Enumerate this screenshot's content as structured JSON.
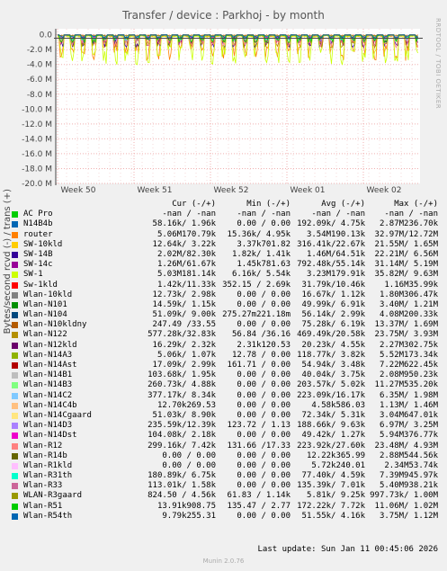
{
  "title": "Transfer / device : Parkhoj - by month",
  "ylabel": "Bytes/second rcvd (-) / trans (+)",
  "watermark": "RRDTOOL / TOBI OETIKER",
  "last_update": "Last update:  Sun Jan 11 00:45:06 2026",
  "footer": "Munin 2.0.76",
  "chart_data": {
    "type": "line",
    "yticks": [
      {
        "v": 0,
        "label": "0.0"
      },
      {
        "v": -2,
        "label": "-2.0 M"
      },
      {
        "v": -4,
        "label": "-4.0 M"
      },
      {
        "v": -6,
        "label": "-6.0 M"
      },
      {
        "v": -8,
        "label": "-8.0 M"
      },
      {
        "v": -10,
        "label": "-10.0 M"
      },
      {
        "v": -12,
        "label": "-12.0 M"
      },
      {
        "v": -14,
        "label": "-14.0 M"
      },
      {
        "v": -16,
        "label": "-16.0 M"
      },
      {
        "v": -18,
        "label": "-18.0 M"
      },
      {
        "v": -20,
        "label": "-20.0 M"
      }
    ],
    "ylim": [
      -20,
      0.8
    ],
    "xticks": [
      "Week 50",
      "Week 51",
      "Week 52",
      "Week 01",
      "Week 02"
    ],
    "grid": true
  },
  "legend_header": {
    "cur": "Cur (-/+)",
    "min": "Min (-/+)",
    "avg": "Avg (-/+)",
    "max": "Max (-/+)"
  },
  "legend": [
    {
      "name": "AC Pro",
      "color": "#00cc00",
      "cur": "-nan / -nan",
      "min": "-nan / -nan",
      "avg": "-nan / -nan",
      "max": "-nan / -nan"
    },
    {
      "name": "N14B4b",
      "color": "#0066b3",
      "cur": "58.16k/ 1.96k",
      "min": "0.00 / 0.00",
      "avg": "192.09k/ 4.75k",
      "max": "2.87M236.70k"
    },
    {
      "name": "router",
      "color": "#ff8000",
      "cur": "5.06M170.79k",
      "min": "15.36k/ 4.95k",
      "avg": "3.54M190.13k",
      "max": "32.97M/12.72M"
    },
    {
      "name": "SW-10kld",
      "color": "#ffcc00",
      "cur": "12.64k/ 3.22k",
      "min": "3.37k701.82",
      "avg": "316.41k/22.67k",
      "max": "21.55M/ 1.65M"
    },
    {
      "name": "SW-14B",
      "color": "#330099",
      "cur": "2.02M/82.30k",
      "min": "1.82k/ 1.41k",
      "avg": "1.46M/64.51k",
      "max": "22.21M/ 6.56M"
    },
    {
      "name": "SW-14c",
      "color": "#990099",
      "cur": "1.26M/61.67k",
      "min": "1.45k781.63",
      "avg": "792.48k/55.14k",
      "max": "31.14M/ 5.19M"
    },
    {
      "name": "SW-1",
      "color": "#ccff00",
      "cur": "5.03M181.14k",
      "min": "6.16k/ 5.54k",
      "avg": "3.23M179.91k",
      "max": "35.82M/ 9.63M"
    },
    {
      "name": "Sw-1kld",
      "color": "#ff0000",
      "cur": "1.42k/11.33k",
      "min": "352.15 / 2.69k",
      "avg": "31.79k/10.46k",
      "max": "1.16M35.99k"
    },
    {
      "name": "Wlan-10kld",
      "color": "#808080",
      "cur": "12.73k/ 2.98k",
      "min": "0.00 / 0.00",
      "avg": "16.67k/ 1.12k",
      "max": "1.80M306.47k"
    },
    {
      "name": "Wlan-N101",
      "color": "#008f00",
      "cur": "14.59k/ 1.15k",
      "min": "0.00 / 0.00",
      "avg": "49.99k/ 6.91k",
      "max": "3.40M/ 1.21M"
    },
    {
      "name": "Wlan-N104",
      "color": "#00487d",
      "cur": "51.09k/ 9.00k",
      "min": "275.27m221.18m",
      "avg": "56.14k/ 2.99k",
      "max": "4.08M200.33k"
    },
    {
      "name": "Wlan-N10kldny",
      "color": "#b35a00",
      "cur": "247.49 /33.55",
      "min": "0.00 / 0.00",
      "avg": "75.28k/ 6.19k",
      "max": "13.37M/ 1.69M"
    },
    {
      "name": "Wlan-N122",
      "color": "#b38f00",
      "cur": "577.28k/32.83k",
      "min": "56.84 /36.16",
      "avg": "469.49k/20.58k",
      "max": "23.75M/ 3.93M"
    },
    {
      "name": "Wlan-N12kld",
      "color": "#6b006b",
      "cur": "16.29k/ 2.32k",
      "min": "2.31k120.53",
      "avg": "20.23k/ 4.55k",
      "max": "2.27M302.75k"
    },
    {
      "name": "Wlan-N14A3",
      "color": "#8fb300",
      "cur": "5.06k/ 1.07k",
      "min": "12.78 / 0.00",
      "avg": "118.77k/ 3.82k",
      "max": "5.52M173.34k"
    },
    {
      "name": "Wlan-N14Ast",
      "color": "#b30000",
      "cur": "17.09k/ 2.99k",
      "min": "161.71 / 0.00",
      "avg": "54.94k/ 3.48k",
      "max": "7.22M622.45k"
    },
    {
      "name": "Wlan-N14B1",
      "color": "#bebebe",
      "cur": "103.68k/ 1.95k",
      "min": "0.00 / 0.00",
      "avg": "40.04k/ 3.75k",
      "max": "2.08M950.23k"
    },
    {
      "name": "Wlan-N14B3",
      "color": "#80ff80",
      "cur": "260.73k/ 4.88k",
      "min": "0.00 / 0.00",
      "avg": "203.57k/ 5.02k",
      "max": "11.27M535.20k"
    },
    {
      "name": "Wlan-N14C2",
      "color": "#80c9ff",
      "cur": "377.17k/ 8.34k",
      "min": "0.00 / 0.00",
      "avg": "223.09k/16.17k",
      "max": "6.35M/ 1.98M"
    },
    {
      "name": "Wlan-N14C4b",
      "color": "#ffc080",
      "cur": "12.70k269.53",
      "min": "0.00 / 0.00",
      "avg": "4.58k586.03",
      "max": "1.13M/ 1.46M"
    },
    {
      "name": "Wlan-N14Cgaard",
      "color": "#ffe680",
      "cur": "51.03k/ 8.90k",
      "min": "0.00 / 0.00",
      "avg": "72.34k/ 5.31k",
      "max": "3.04M647.01k"
    },
    {
      "name": "Wlan-N14D3",
      "color": "#aa80ff",
      "cur": "235.59k/12.39k",
      "min": "123.72 / 1.13",
      "avg": "188.66k/ 9.63k",
      "max": "6.97M/ 3.25M"
    },
    {
      "name": "Wlan-N14Dst",
      "color": "#ee00cc",
      "cur": "104.08k/ 2.18k",
      "min": "0.00 / 0.00",
      "avg": "49.42k/ 1.27k",
      "max": "5.94M376.77k"
    },
    {
      "name": "Wlan-R12",
      "color": "#ff8080",
      "cur": "299.16k/ 7.42k",
      "min": "131.66 /17.33",
      "avg": "223.92k/27.60k",
      "max": "23.48M/ 4.93M"
    },
    {
      "name": "Wlan-R14b",
      "color": "#666600",
      "cur": "0.00 / 0.00",
      "min": "0.00 / 0.00",
      "avg": "12.22k365.99",
      "max": "2.88M544.56k"
    },
    {
      "name": "Wlan-R1kld",
      "color": "#ffbfff",
      "cur": "0.00 / 0.00",
      "min": "0.00 / 0.00",
      "avg": "5.72k240.01",
      "max": "2.34M53.74k"
    },
    {
      "name": "Wlan-R31th",
      "color": "#00ffcc",
      "cur": "180.89k/ 6.75k",
      "min": "0.00 / 0.00",
      "avg": "77.40k/ 4.59k",
      "max": "7.39M945.97k"
    },
    {
      "name": "Wlan-R33",
      "color": "#cc6699",
      "cur": "113.01k/ 1.58k",
      "min": "0.00 / 0.00",
      "avg": "135.39k/ 7.01k",
      "max": "5.40M938.21k"
    },
    {
      "name": "WLAN-R3gaard",
      "color": "#999900",
      "cur": "824.50 / 4.56k",
      "min": "61.83 / 1.14k",
      "avg": "5.81k/ 9.25k",
      "max": "997.73k/ 1.00M"
    },
    {
      "name": "Wlan-R51",
      "color": "#00cc00",
      "cur": "13.91k908.75",
      "min": "135.47 / 2.77",
      "avg": "172.22k/ 7.72k",
      "max": "11.06M/ 1.02M"
    },
    {
      "name": "Wlan-R54th",
      "color": "#0066b3",
      "cur": "9.79k255.31",
      "min": "0.00 / 0.00",
      "avg": "51.55k/ 4.16k",
      "max": "3.75M/ 1.12M"
    }
  ]
}
